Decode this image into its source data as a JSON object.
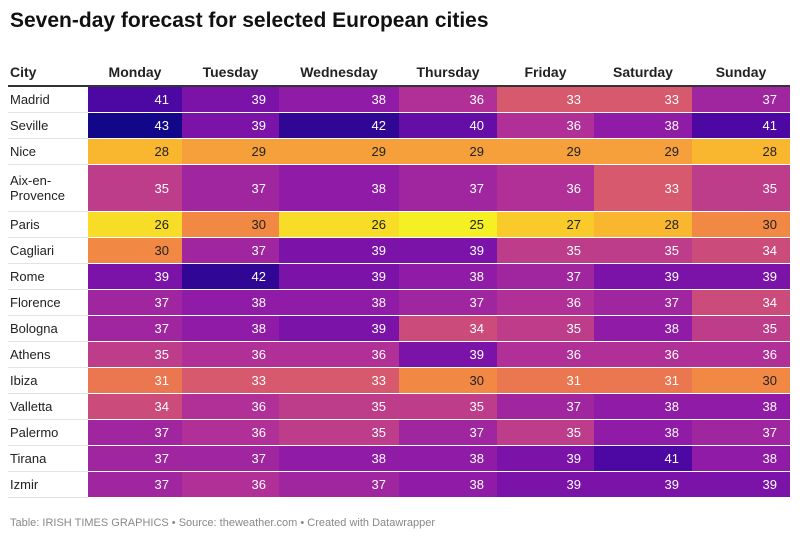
{
  "footer": "Table: IRISH TIMES GRAPHICS • Source: theweather.com • Created with Datawrapper",
  "chart_data": {
    "type": "heatmap",
    "title": "Seven-day forecast for selected European cities",
    "row_header": "City",
    "columns": [
      "Monday",
      "Tuesday",
      "Wednesday",
      "Thursday",
      "Friday",
      "Saturday",
      "Sunday"
    ],
    "color_range": [
      25,
      43
    ],
    "rows": [
      {
        "city": "Madrid",
        "values": [
          41,
          39,
          38,
          36,
          33,
          33,
          37
        ]
      },
      {
        "city": "Seville",
        "values": [
          43,
          39,
          42,
          40,
          36,
          38,
          41
        ]
      },
      {
        "city": "Nice",
        "values": [
          28,
          29,
          29,
          29,
          29,
          29,
          28
        ]
      },
      {
        "city": "Aix-en-Provence",
        "values": [
          35,
          37,
          38,
          37,
          36,
          33,
          35
        ]
      },
      {
        "city": "Paris",
        "values": [
          26,
          30,
          26,
          25,
          27,
          28,
          30
        ]
      },
      {
        "city": "Cagliari",
        "values": [
          30,
          37,
          39,
          39,
          35,
          35,
          34
        ]
      },
      {
        "city": "Rome",
        "values": [
          39,
          42,
          39,
          38,
          37,
          39,
          39
        ]
      },
      {
        "city": "Florence",
        "values": [
          37,
          38,
          38,
          37,
          36,
          37,
          34
        ]
      },
      {
        "city": "Bologna",
        "values": [
          37,
          38,
          39,
          34,
          35,
          38,
          35
        ]
      },
      {
        "city": "Athens",
        "values": [
          35,
          36,
          36,
          39,
          36,
          36,
          36
        ]
      },
      {
        "city": "Ibiza",
        "values": [
          31,
          33,
          33,
          30,
          31,
          31,
          30
        ]
      },
      {
        "city": "Valletta",
        "values": [
          34,
          36,
          35,
          35,
          37,
          38,
          38
        ]
      },
      {
        "city": "Palermo",
        "values": [
          37,
          36,
          35,
          37,
          35,
          38,
          37
        ]
      },
      {
        "city": "Tirana",
        "values": [
          37,
          37,
          38,
          38,
          39,
          41,
          38
        ]
      },
      {
        "city": "Izmir",
        "values": [
          37,
          36,
          37,
          38,
          39,
          39,
          39
        ]
      }
    ]
  }
}
